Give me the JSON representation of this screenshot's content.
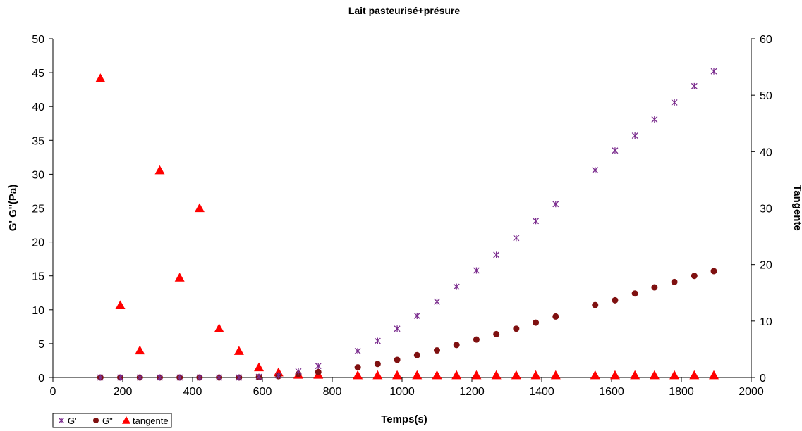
{
  "chart_data": {
    "type": "scatter",
    "title": "Lait pasteurisé+présure",
    "xlabel": "Temps(s)",
    "ylabel": "G' G''(Pa)",
    "y2label": "Tangente",
    "xlim": [
      0,
      2000
    ],
    "ylim": [
      0,
      50
    ],
    "y2lim": [
      0,
      60
    ],
    "x_ticks": [
      "0",
      "200",
      "400",
      "600",
      "800",
      "1000",
      "1200",
      "1400",
      "1600",
      "1800",
      "2000"
    ],
    "y_ticks": [
      "0",
      "5",
      "10",
      "15",
      "20",
      "25",
      "30",
      "35",
      "40",
      "45",
      "50"
    ],
    "y2_ticks": [
      "0",
      "10",
      "20",
      "30",
      "40",
      "50",
      "60"
    ],
    "grid": false,
    "legend_position": "bottom-left",
    "series": [
      {
        "name": "G'",
        "axis": "left",
        "marker": "asterisk",
        "color": "#7B2D8E",
        "x": [
          136,
          193,
          249,
          306,
          363,
          420,
          476,
          533,
          590,
          646,
          703,
          760,
          873,
          930,
          986,
          1043,
          1100,
          1156,
          1213,
          1270,
          1327,
          1383,
          1440,
          1553,
          1610,
          1667,
          1723,
          1780,
          1837,
          1893
        ],
        "y": [
          0,
          0,
          0,
          0,
          0,
          0,
          0,
          0,
          0.1,
          0.3,
          0.9,
          1.7,
          3.9,
          5.4,
          7.2,
          9.1,
          11.2,
          13.4,
          15.8,
          18.1,
          20.6,
          23.1,
          25.6,
          30.6,
          33.5,
          35.7,
          38.1,
          40.6,
          43.0,
          45.2
        ]
      },
      {
        "name": "G\"",
        "axis": "left",
        "marker": "circle",
        "color": "#7F1010",
        "x": [
          136,
          193,
          249,
          306,
          363,
          420,
          476,
          533,
          590,
          646,
          703,
          760,
          873,
          930,
          986,
          1043,
          1100,
          1156,
          1213,
          1270,
          1327,
          1383,
          1440,
          1553,
          1610,
          1667,
          1723,
          1780,
          1837,
          1893
        ],
        "y": [
          0,
          0,
          0,
          0,
          0,
          0,
          0,
          0,
          0.05,
          0.2,
          0.5,
          0.8,
          1.5,
          2.0,
          2.6,
          3.3,
          4.0,
          4.8,
          5.6,
          6.4,
          7.2,
          8.1,
          9.0,
          10.7,
          11.4,
          12.4,
          13.3,
          14.1,
          15.0,
          15.7
        ]
      },
      {
        "name": "tangente",
        "axis": "right",
        "marker": "triangle",
        "color": "#FF0000",
        "x": [
          136,
          193,
          249,
          306,
          363,
          420,
          476,
          533,
          590,
          646,
          703,
          760,
          873,
          930,
          986,
          1043,
          1100,
          1156,
          1213,
          1270,
          1327,
          1383,
          1440,
          1553,
          1610,
          1667,
          1723,
          1780,
          1837,
          1893
        ],
        "y": [
          53.0,
          12.8,
          4.8,
          36.7,
          17.7,
          30.0,
          8.7,
          4.7,
          1.8,
          0.9,
          0.5,
          0.5,
          0.4,
          0.4,
          0.4,
          0.4,
          0.4,
          0.4,
          0.4,
          0.4,
          0.4,
          0.4,
          0.4,
          0.4,
          0.4,
          0.4,
          0.4,
          0.4,
          0.4,
          0.4
        ]
      }
    ]
  }
}
